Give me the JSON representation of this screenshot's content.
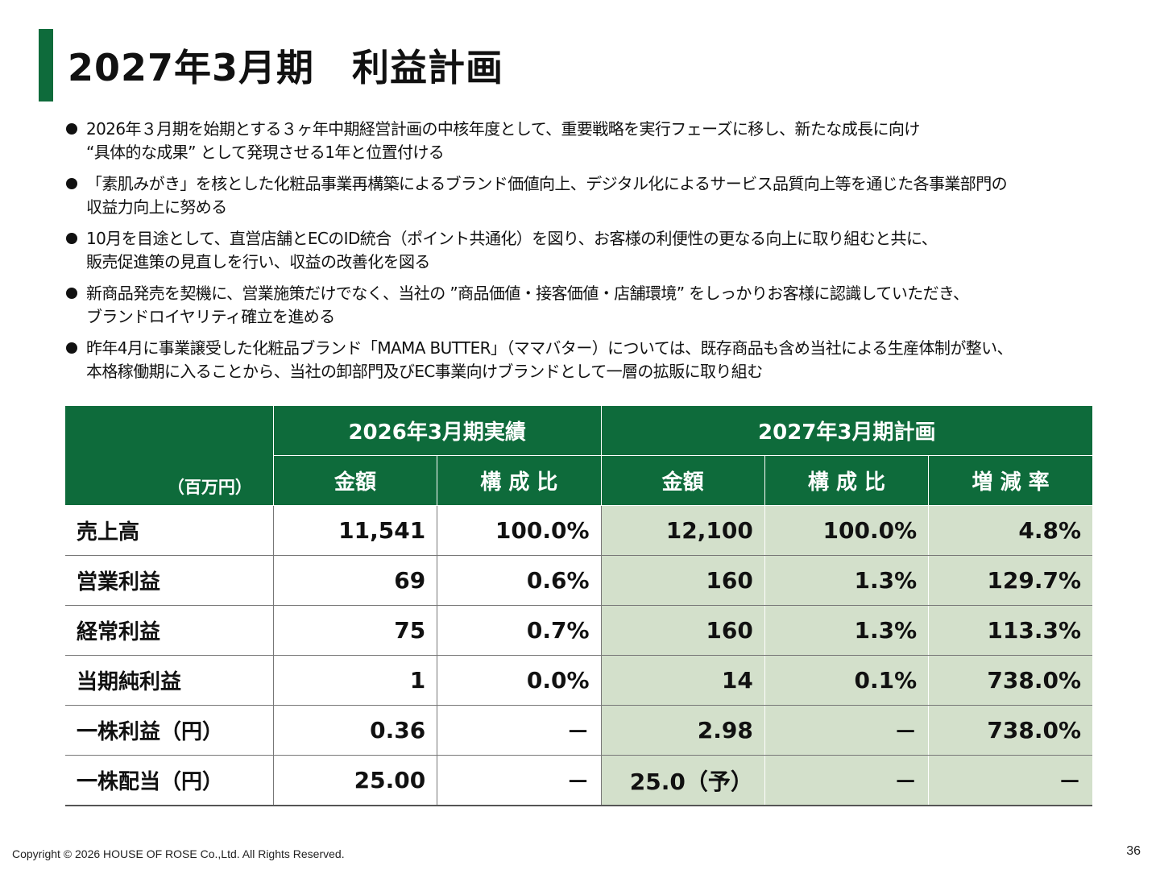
{
  "title": "2027年3月期　利益計画",
  "bullets": [
    [
      "2026年３月期を始期とする３ヶ年中期経営計画の中核年度として、重要戦略を実行フェーズに移し、新たな成長に向け",
      "“具体的な成果” として発現させる1年と位置付ける"
    ],
    [
      "「素肌みがき」を核とした化粧品事業再構築によるブランド価値向上、デジタル化によるサービス品質向上等を通じた各事業部門の",
      "収益力向上に努める"
    ],
    [
      "10月を目途として、直営店舗とECのID統合（ポイント共通化）を図り、お客様の利便性の更なる向上に取り組むと共に、",
      "販売促進策の見直しを行い、収益の改善化を図る"
    ],
    [
      "新商品発売を契機に、営業施策だけでなく、当社の ”商品価値・接客価値・店舗環境” をしっかりお客様に認識していただき、",
      "ブランドロイヤリティ確立を進める"
    ],
    [
      "昨年4月に事業譲受した化粧品ブランド「MAMA BUTTER」（ママバター）については、既存商品も含め当社による生産体制が整い、",
      "本格稼働期に入ることから、当社の卸部門及びEC事業向けブランドとして一層の拡販に取り組む"
    ]
  ],
  "table": {
    "unit": "（百万円）",
    "group_actual": "2026年3月期実績",
    "group_plan": "2027年3月期計画",
    "col_amount": "金額",
    "col_ratio": "構 成 比",
    "col_change": "増 減 率",
    "rows": [
      {
        "label": "売上高",
        "a_amount": "11,541",
        "a_ratio": "100.0%",
        "p_amount": "12,100",
        "p_ratio": "100.0%",
        "change": "4.8%"
      },
      {
        "label": "営業利益",
        "a_amount": "69",
        "a_ratio": "0.6%",
        "p_amount": "160",
        "p_ratio": "1.3%",
        "change": "129.7%"
      },
      {
        "label": "経常利益",
        "a_amount": "75",
        "a_ratio": "0.7%",
        "p_amount": "160",
        "p_ratio": "1.3%",
        "change": "113.3%"
      },
      {
        "label": "当期純利益",
        "a_amount": "1",
        "a_ratio": "0.0%",
        "p_amount": "14",
        "p_ratio": "0.1%",
        "change": "738.0%"
      },
      {
        "label": "一株利益（円）",
        "a_amount": "0.36",
        "a_ratio": "－",
        "p_amount": "2.98",
        "p_ratio": "－",
        "change": "738.0%"
      },
      {
        "label": "一株配当（円）",
        "a_amount": "25.00",
        "a_ratio": "－",
        "p_amount": "25.0（予）",
        "p_ratio": "－",
        "change": "－"
      }
    ]
  },
  "footer": {
    "copyright": "Copyright  © 2026 HOUSE OF ROSE Co.,Ltd. All Rights Reserved.",
    "page": "36"
  }
}
